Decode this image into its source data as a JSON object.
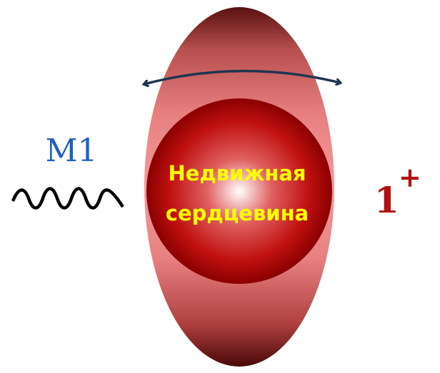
{
  "transition_label": "M1",
  "core_label": [
    "Недвижная",
    "сердцевина"
  ],
  "state": {
    "spin": "1",
    "parity": "+"
  }
}
